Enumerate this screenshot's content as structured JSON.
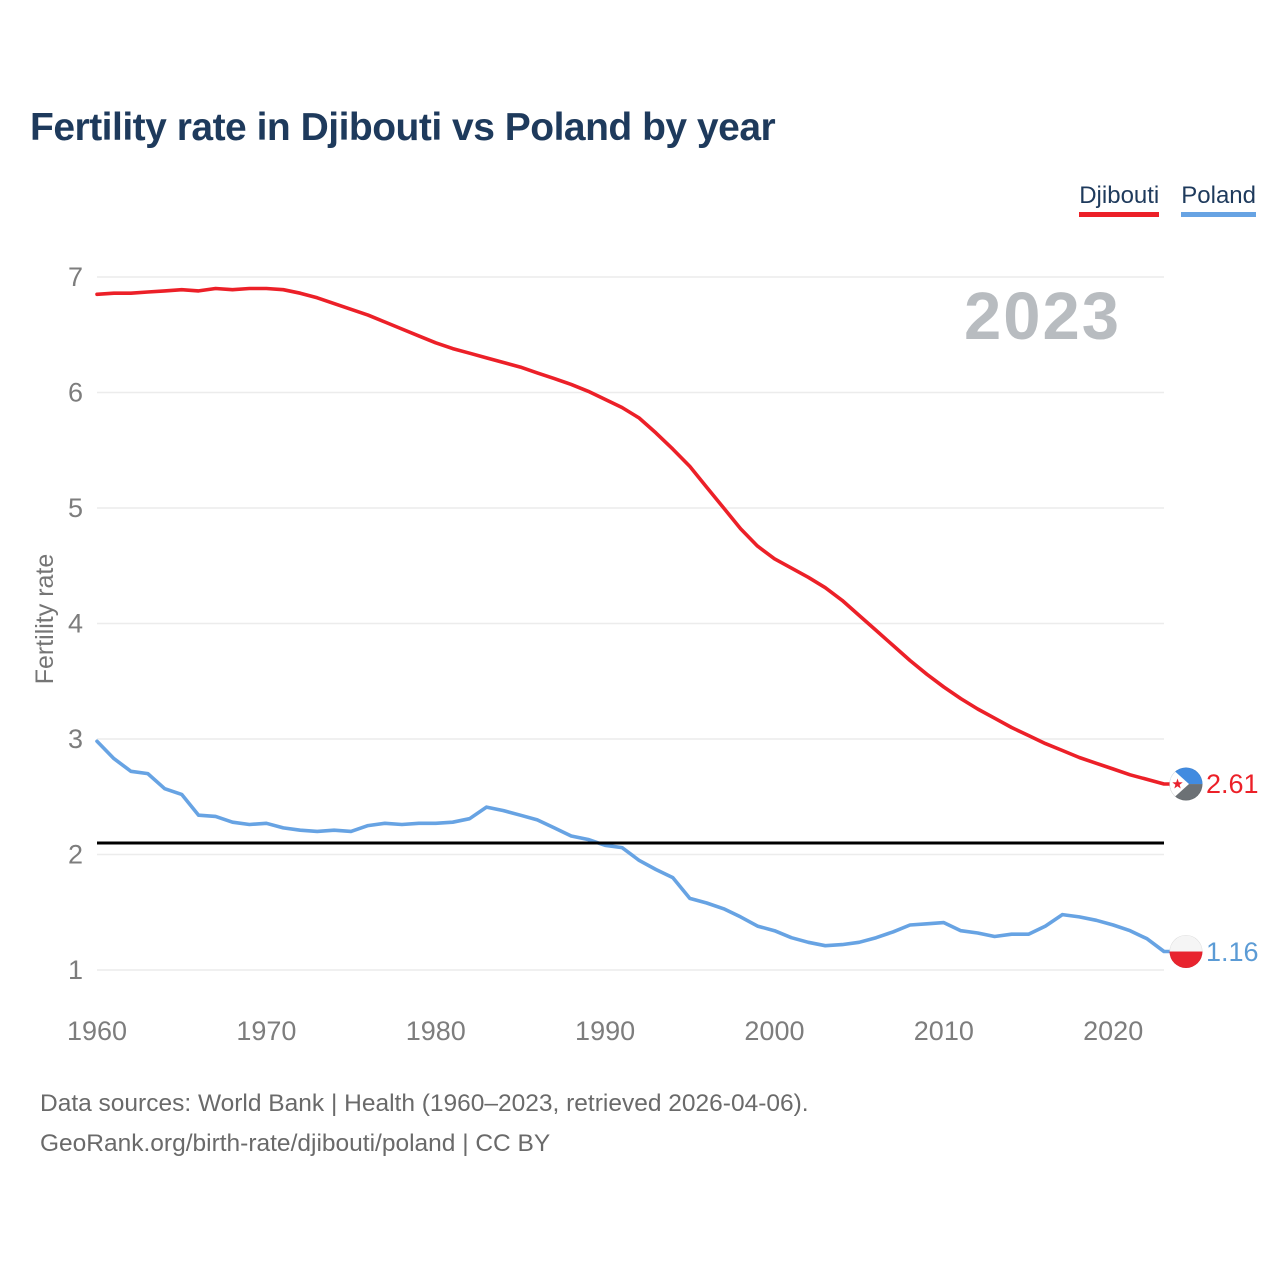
{
  "title": "Fertility rate in Djibouti vs Poland by year",
  "watermark": "2023",
  "y_axis_label": "Fertility rate",
  "colors": {
    "title_navy": "#1e3a5c",
    "djibouti_red": "#ec2028",
    "poland_blue": "#67a3e3",
    "poland_value_blue": "#5b9bd5",
    "tick_gray": "#7d7d7d",
    "watermark_gray": "#b8bcc0",
    "gridline_gray": "#ececec",
    "reference_black": "#000000",
    "footer_gray": "#6a6a6a"
  },
  "legend": [
    {
      "label": "Djibouti",
      "color": "#ec2028"
    },
    {
      "label": "Poland",
      "color": "#67a3e3"
    }
  ],
  "end_labels": {
    "djibouti": {
      "value": "2.61",
      "color": "#ec2028"
    },
    "poland": {
      "value": "1.16",
      "color": "#5b9bd5"
    }
  },
  "end_markers": {
    "djibouti": {
      "icon": "djibouti-flag-icon",
      "top": "#418be0",
      "bottom": "#6c7175",
      "triangle": "#ffffff",
      "star": "#e8232e"
    },
    "poland": {
      "icon": "poland-flag-icon",
      "top": "#f5f5f5",
      "bottom": "#e8232e"
    }
  },
  "footer": {
    "line1": "Data sources: World Bank | Health (1960–2023, retrieved 2026-04-06).",
    "line2": "GeoRank.org/birth-rate/djibouti/poland | CC BY"
  },
  "chart_data": {
    "type": "line",
    "title": "Fertility rate in Djibouti vs Poland by year",
    "xlabel": "",
    "ylabel": "Fertility rate",
    "xlim": [
      1960,
      2023
    ],
    "ylim": [
      1,
      7
    ],
    "xticks": [
      1960,
      1970,
      1980,
      1990,
      2000,
      2010,
      2020
    ],
    "yticks": [
      1,
      2,
      3,
      4,
      5,
      6,
      7
    ],
    "grid": true,
    "legend_position": "top-right",
    "reference_line": {
      "value": 2.1,
      "color": "#000000"
    },
    "x": [
      1960,
      1961,
      1962,
      1963,
      1964,
      1965,
      1966,
      1967,
      1968,
      1969,
      1970,
      1971,
      1972,
      1973,
      1974,
      1975,
      1976,
      1977,
      1978,
      1979,
      1980,
      1981,
      1982,
      1983,
      1984,
      1985,
      1986,
      1987,
      1988,
      1989,
      1990,
      1991,
      1992,
      1993,
      1994,
      1995,
      1996,
      1997,
      1998,
      1999,
      2000,
      2001,
      2002,
      2003,
      2004,
      2005,
      2006,
      2007,
      2008,
      2009,
      2010,
      2011,
      2012,
      2013,
      2014,
      2015,
      2016,
      2017,
      2018,
      2019,
      2020,
      2021,
      2022,
      2023
    ],
    "series": [
      {
        "name": "Djibouti",
        "color": "#ec2028",
        "values": [
          6.85,
          6.86,
          6.86,
          6.87,
          6.88,
          6.89,
          6.88,
          6.9,
          6.89,
          6.9,
          6.9,
          6.89,
          6.86,
          6.82,
          6.77,
          6.72,
          6.67,
          6.61,
          6.55,
          6.49,
          6.43,
          6.38,
          6.34,
          6.3,
          6.26,
          6.22,
          6.17,
          6.12,
          6.07,
          6.01,
          5.94,
          5.87,
          5.78,
          5.65,
          5.51,
          5.36,
          5.18,
          5.0,
          4.82,
          4.67,
          4.56,
          4.48,
          4.4,
          4.31,
          4.2,
          4.07,
          3.94,
          3.81,
          3.68,
          3.56,
          3.45,
          3.35,
          3.26,
          3.18,
          3.1,
          3.03,
          2.96,
          2.9,
          2.84,
          2.79,
          2.74,
          2.69,
          2.65,
          2.61
        ]
      },
      {
        "name": "Poland",
        "color": "#67a3e3",
        "values": [
          2.98,
          2.83,
          2.72,
          2.7,
          2.57,
          2.52,
          2.34,
          2.33,
          2.28,
          2.26,
          2.27,
          2.23,
          2.21,
          2.2,
          2.21,
          2.2,
          2.25,
          2.27,
          2.26,
          2.27,
          2.27,
          2.28,
          2.31,
          2.41,
          2.38,
          2.34,
          2.3,
          2.23,
          2.16,
          2.13,
          2.08,
          2.06,
          1.95,
          1.87,
          1.8,
          1.62,
          1.58,
          1.53,
          1.46,
          1.38,
          1.34,
          1.28,
          1.24,
          1.21,
          1.22,
          1.24,
          1.28,
          1.33,
          1.39,
          1.4,
          1.41,
          1.34,
          1.32,
          1.29,
          1.31,
          1.31,
          1.38,
          1.48,
          1.46,
          1.43,
          1.39,
          1.34,
          1.27,
          1.16
        ]
      }
    ]
  }
}
